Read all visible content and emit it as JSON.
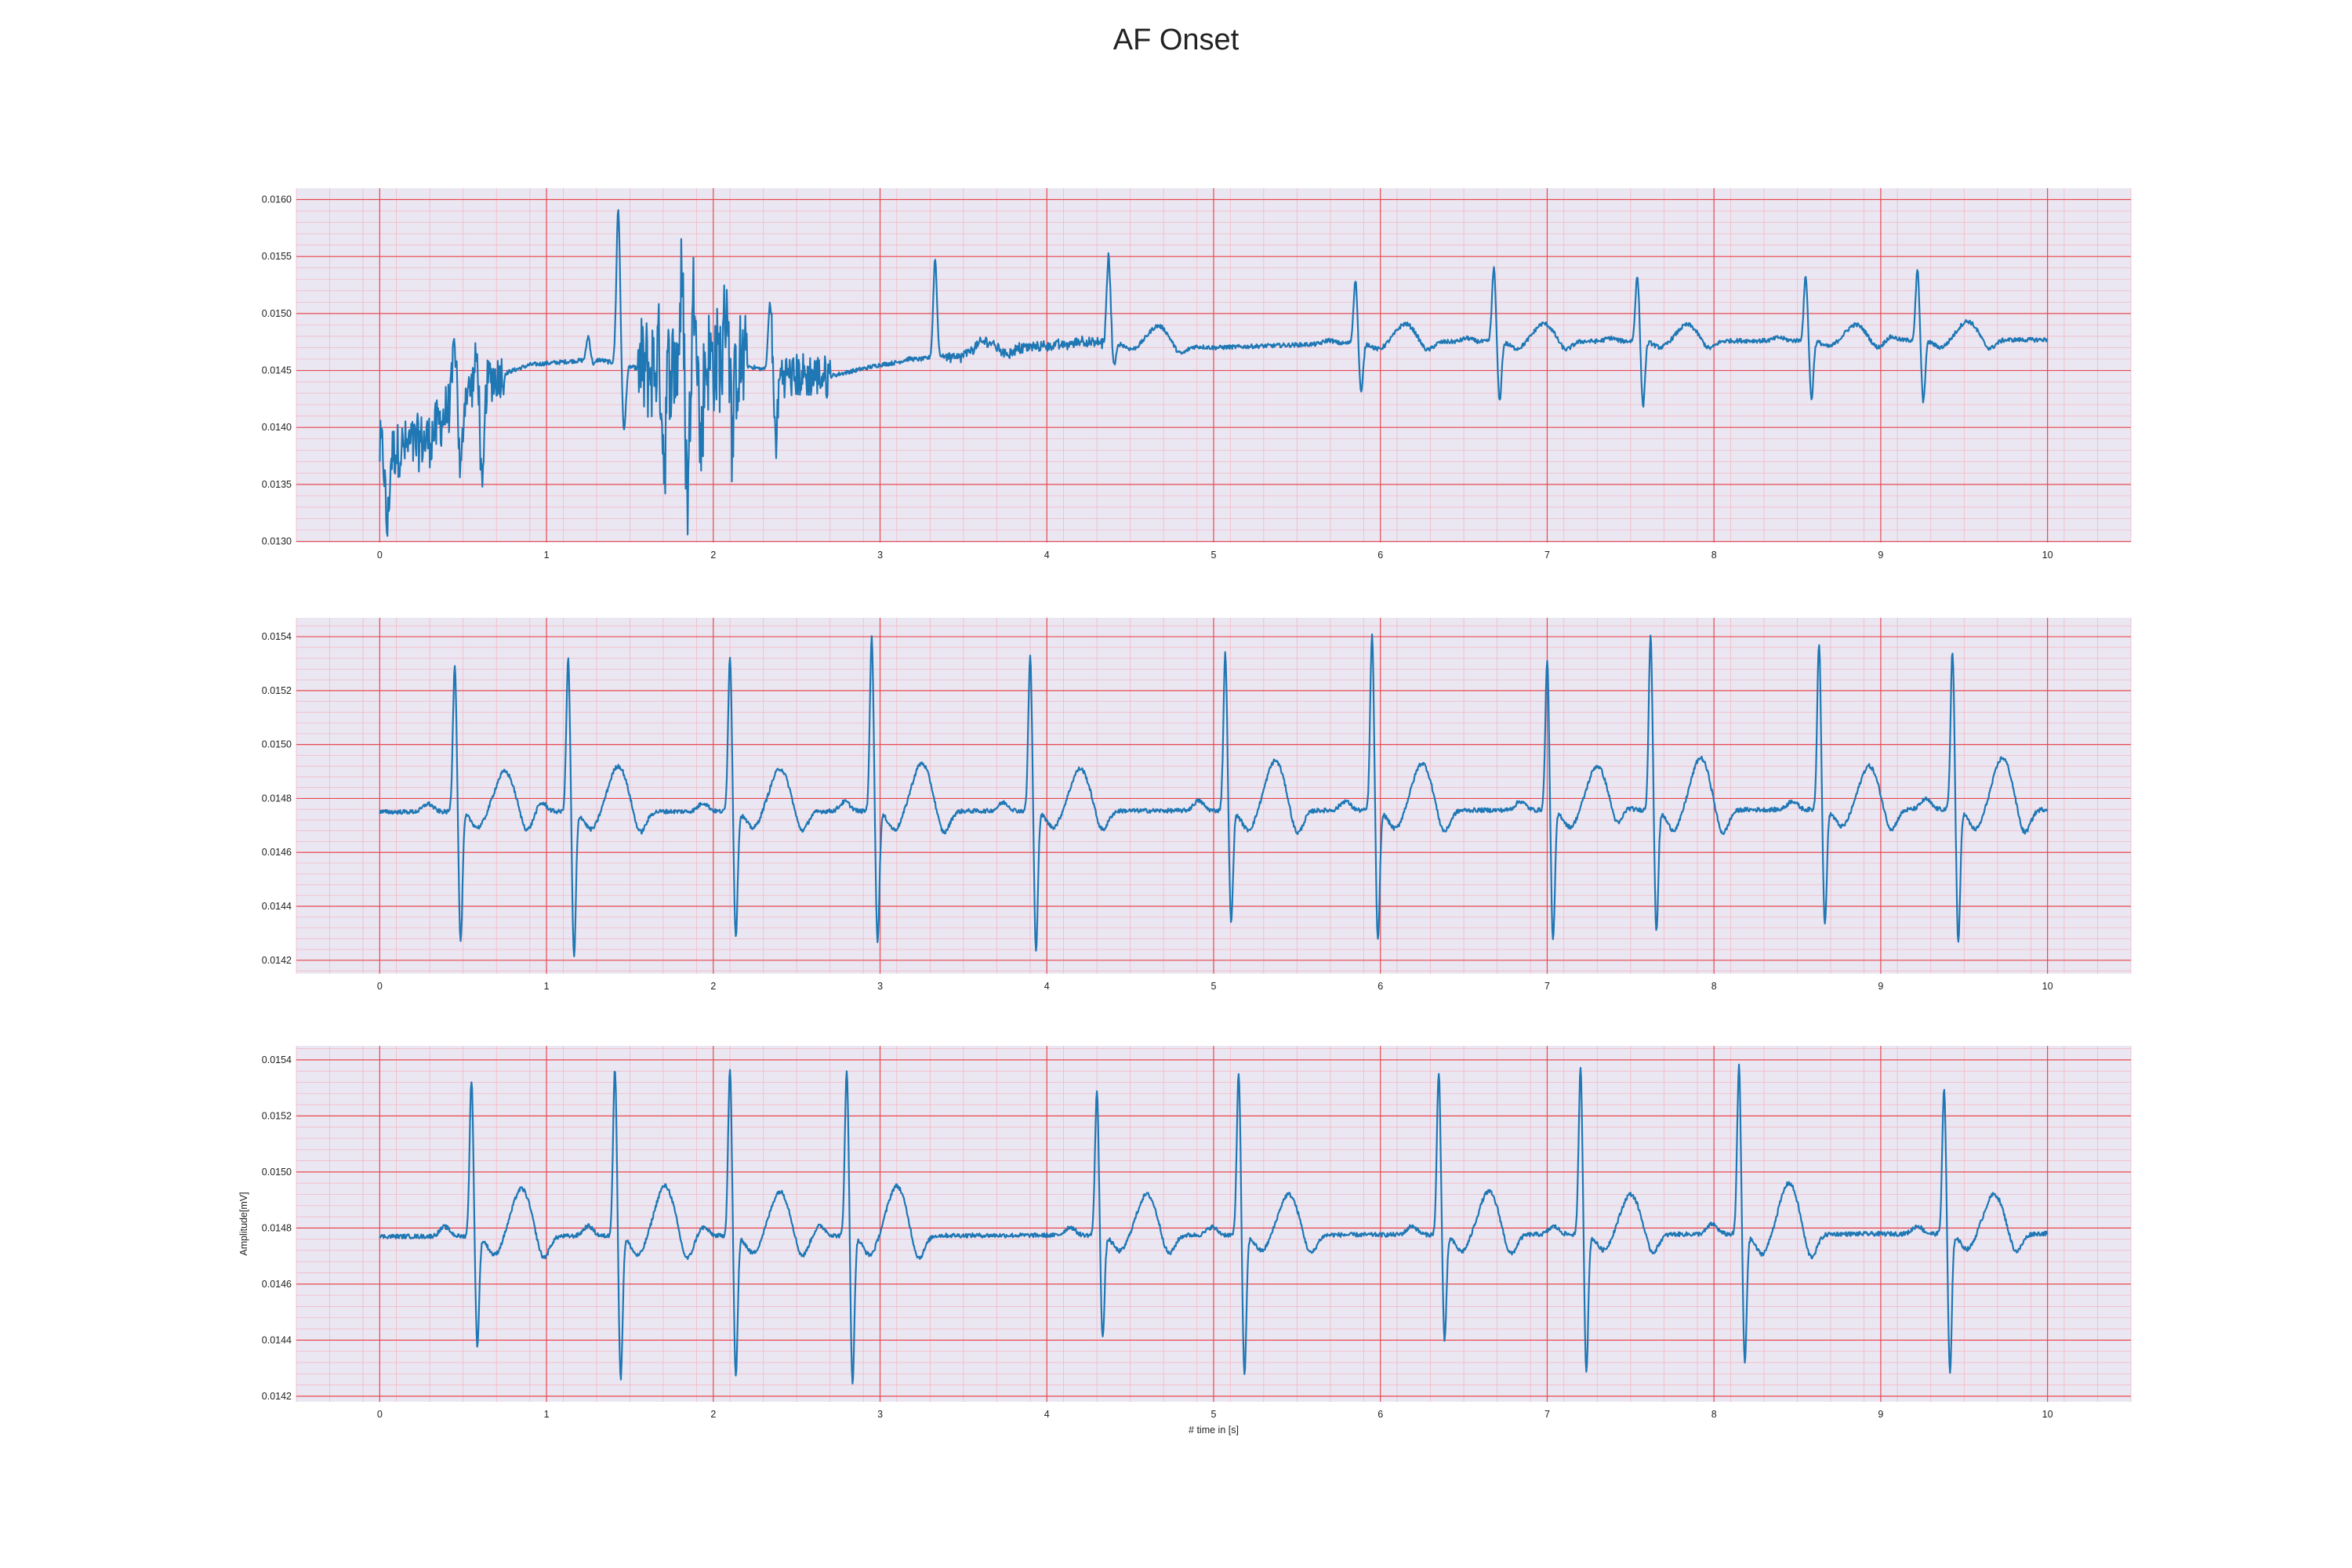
{
  "figure": {
    "title": "AF Onset"
  },
  "colors": {
    "plot_background": "#eae7f2",
    "major_grid": "#e8484f",
    "minor_grid": "#f2b9c6",
    "line": "#1f77b4"
  },
  "chart_data": [
    {
      "type": "line",
      "title": "",
      "xlabel": "",
      "ylabel": "",
      "xlim": [
        -0.5,
        10.5
      ],
      "ylim": [
        0.01299,
        0.0161
      ],
      "x_ticks": [
        0,
        1,
        2,
        3,
        4,
        5,
        6,
        7,
        8,
        9,
        10
      ],
      "y_ticks": [
        0.013,
        0.0135,
        0.014,
        0.0145,
        0.015,
        0.0155,
        0.016
      ],
      "y_tick_labels": [
        "0.0130",
        "0.0135",
        "0.0140",
        "0.0145",
        "0.0150",
        "0.0155",
        "0.0160"
      ],
      "grid": "major + minor",
      "x_range": [
        0,
        10
      ],
      "baseline": [
        [
          0,
          0.01375
        ],
        [
          0.3,
          0.0139
        ],
        [
          0.45,
          0.01425
        ],
        [
          0.6,
          0.0144
        ],
        [
          0.9,
          0.01455
        ],
        [
          1.3,
          0.0146
        ],
        [
          1.6,
          0.0145
        ],
        [
          2.0,
          0.0146
        ],
        [
          2.5,
          0.01445
        ],
        [
          2.7,
          0.01445
        ],
        [
          3.0,
          0.01455
        ],
        [
          3.5,
          0.01465
        ],
        [
          4.0,
          0.01472
        ],
        [
          4.5,
          0.01475
        ],
        [
          5.0,
          0.0147
        ],
        [
          6.0,
          0.01475
        ],
        [
          10,
          0.01477
        ]
      ],
      "noise_segments": [
        {
          "start": 0,
          "end": 0.45,
          "amplitude": 0.00025
        },
        {
          "start": 0.45,
          "end": 0.75,
          "amplitude": 0.0002
        },
        {
          "start": 1.55,
          "end": 2.2,
          "amplitude": 0.00048
        },
        {
          "start": 2.35,
          "end": 2.7,
          "amplitude": 0.0002
        },
        {
          "start": 3.4,
          "end": 4.4,
          "amplitude": 4e-05
        }
      ],
      "beats": [
        {
          "t": 0.01,
          "r": 0.01382,
          "s": 0.0131
        },
        {
          "t": 0.45,
          "r": 0.01475,
          "s": 0.01355
        },
        {
          "t": 0.58,
          "r": 0.0146,
          "s": 0.01335
        },
        {
          "t": 1.25,
          "r": 0.0148,
          "s": 0.01455
        },
        {
          "t": 1.43,
          "r": 0.01592,
          "s": 0.01398
        },
        {
          "t": 1.67,
          "r": 0.01465,
          "s": 0.01375
        },
        {
          "t": 1.81,
          "r": 0.01525,
          "s": 0.0134
        },
        {
          "t": 1.89,
          "r": 0.01535,
          "s": 0.0138
        },
        {
          "t": 2.08,
          "r": 0.0152,
          "s": 0.01395
        },
        {
          "t": 2.34,
          "r": 0.0151,
          "s": 0.0139
        },
        {
          "t": 3.33,
          "r": 0.01548,
          "s": 0.01462,
          "tw": 0.0147
        },
        {
          "t": 4.37,
          "r": 0.0155,
          "s": 0.01455,
          "tw": 0.0149
        },
        {
          "t": 5.85,
          "r": 0.0153,
          "s": 0.0143,
          "tw": 0.0149
        },
        {
          "t": 6.68,
          "r": 0.0154,
          "s": 0.01423,
          "tw": 0.01491
        },
        {
          "t": 7.54,
          "r": 0.01534,
          "s": 0.01419,
          "tw": 0.0149
        },
        {
          "t": 8.55,
          "r": 0.01533,
          "s": 0.01425,
          "tw": 0.0149
        },
        {
          "t": 9.22,
          "r": 0.01538,
          "s": 0.01422,
          "tw": 0.01493
        }
      ]
    },
    {
      "type": "line",
      "title": "",
      "xlabel": "",
      "ylabel": "",
      "xlim": [
        -0.5,
        10.5
      ],
      "ylim": [
        0.01415,
        0.01547
      ],
      "x_ticks": [
        0,
        1,
        2,
        3,
        4,
        5,
        6,
        7,
        8,
        9,
        10
      ],
      "y_ticks": [
        0.0142,
        0.0144,
        0.0146,
        0.0148,
        0.015,
        0.0152,
        0.0154
      ],
      "y_tick_labels": [
        "0.0142",
        "0.0144",
        "0.0146",
        "0.0148",
        "0.0150",
        "0.0152",
        "0.0154"
      ],
      "grid": "major + minor",
      "x_range": [
        0,
        10
      ],
      "baseline": [
        [
          0,
          0.01475
        ],
        [
          10,
          0.01476
        ]
      ],
      "noise_segments": [],
      "beats": [
        {
          "t": 0.45,
          "r": 0.0153,
          "s": 0.01427,
          "tw": 0.0149
        },
        {
          "t": 1.13,
          "r": 0.01532,
          "s": 0.01421,
          "tw": 0.01492
        },
        {
          "t": 2.1,
          "r": 0.01533,
          "s": 0.01429,
          "tw": 0.01491
        },
        {
          "t": 2.95,
          "r": 0.0154,
          "s": 0.01427,
          "tw": 0.01493
        },
        {
          "t": 3.9,
          "r": 0.01533,
          "s": 0.01424,
          "tw": 0.01491
        },
        {
          "t": 5.07,
          "r": 0.01534,
          "s": 0.01434,
          "tw": 0.01494
        },
        {
          "t": 5.95,
          "r": 0.01541,
          "s": 0.01427,
          "tw": 0.01493
        },
        {
          "t": 7.0,
          "r": 0.01531,
          "s": 0.01427,
          "tw": 0.01492
        },
        {
          "t": 7.62,
          "r": 0.01541,
          "s": 0.01431,
          "tw": 0.01495
        },
        {
          "t": 8.63,
          "r": 0.01538,
          "s": 0.01433,
          "tw": 0.01492
        },
        {
          "t": 9.43,
          "r": 0.01535,
          "s": 0.01426,
          "tw": 0.01495
        }
      ]
    },
    {
      "type": "line",
      "title": "",
      "xlabel": "# time in [s]",
      "ylabel": "Amplitude[mV]",
      "xlim": [
        -0.5,
        10.5
      ],
      "ylim": [
        0.01418,
        0.01545
      ],
      "x_ticks": [
        0,
        1,
        2,
        3,
        4,
        5,
        6,
        7,
        8,
        9,
        10
      ],
      "y_ticks": [
        0.0142,
        0.0144,
        0.0146,
        0.0148,
        0.015,
        0.0152,
        0.0154
      ],
      "y_tick_labels": [
        "0.0142",
        "0.0144",
        "0.0146",
        "0.0148",
        "0.0150",
        "0.0152",
        "0.0154"
      ],
      "grid": "major + minor",
      "x_range": [
        0,
        10
      ],
      "baseline": [
        [
          0,
          0.01477
        ],
        [
          10,
          0.01478
        ]
      ],
      "noise_segments": [],
      "beats": [
        {
          "t": 0.55,
          "r": 0.01533,
          "s": 0.01438,
          "tw": 0.01494
        },
        {
          "t": 1.41,
          "r": 0.01537,
          "s": 0.01426,
          "tw": 0.01495
        },
        {
          "t": 2.1,
          "r": 0.01537,
          "s": 0.01427,
          "tw": 0.01493
        },
        {
          "t": 2.8,
          "r": 0.01537,
          "s": 0.01425,
          "tw": 0.01495
        },
        {
          "t": 4.3,
          "r": 0.01529,
          "s": 0.01441,
          "tw": 0.01492
        },
        {
          "t": 5.15,
          "r": 0.01536,
          "s": 0.01427,
          "tw": 0.01492
        },
        {
          "t": 6.35,
          "r": 0.01536,
          "s": 0.0144,
          "tw": 0.01493
        },
        {
          "t": 7.2,
          "r": 0.01537,
          "s": 0.01429,
          "tw": 0.01492
        },
        {
          "t": 8.15,
          "r": 0.01538,
          "s": 0.01432,
          "tw": 0.01496
        },
        {
          "t": 9.38,
          "r": 0.0153,
          "s": 0.01428,
          "tw": 0.01492
        }
      ]
    }
  ]
}
